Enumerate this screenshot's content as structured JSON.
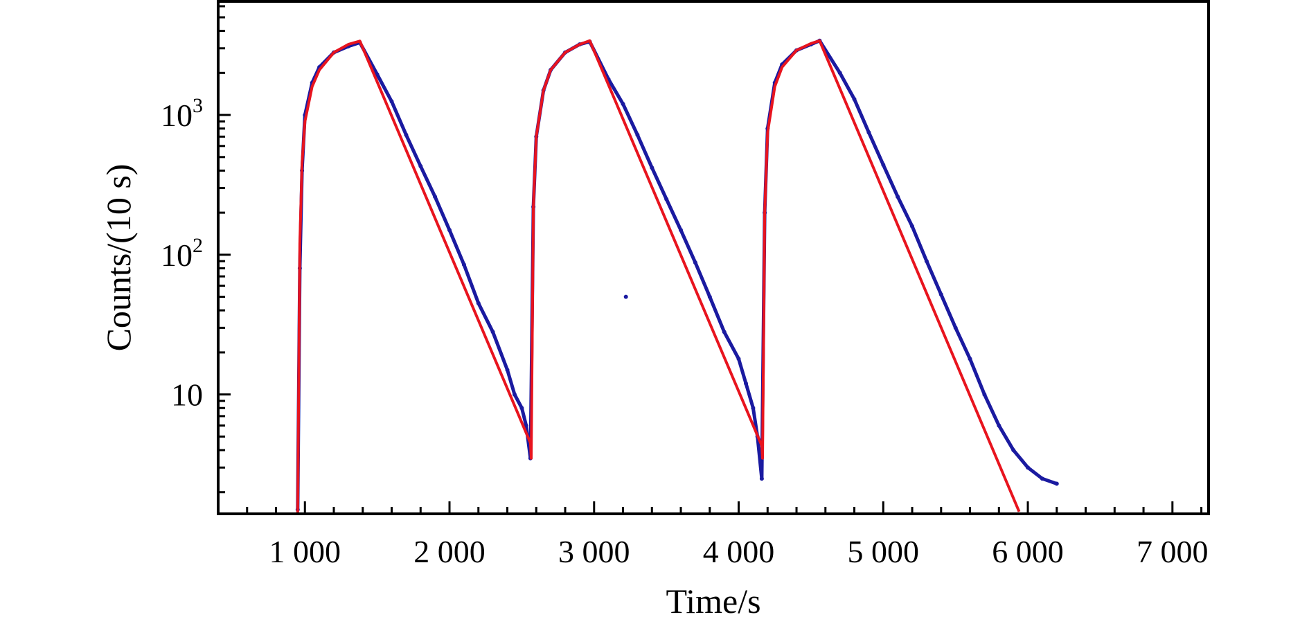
{
  "chart_data": {
    "type": "line",
    "title": "",
    "xlabel": "Time/s",
    "ylabel": "Counts/(10 s)",
    "xlim": [
      400,
      7250
    ],
    "ylim": [
      1.4,
      6500
    ],
    "yscale": "log",
    "grid": false,
    "legend": "none",
    "colors": {
      "measured": "#1a1aa0",
      "fit": "#e8141e",
      "axes": "#000000"
    },
    "x_ticks": [
      {
        "value": 1000,
        "label": "1 000"
      },
      {
        "value": 2000,
        "label": "2 000"
      },
      {
        "value": 3000,
        "label": "3 000"
      },
      {
        "value": 4000,
        "label": "4 000"
      },
      {
        "value": 5000,
        "label": "5 000"
      },
      {
        "value": 6000,
        "label": "6 000"
      },
      {
        "value": 7000,
        "label": "7 000"
      }
    ],
    "y_ticks": [
      {
        "value": 10,
        "base": "10",
        "exp": ""
      },
      {
        "value": 100,
        "base": "10",
        "exp": "2"
      },
      {
        "value": 1000,
        "base": "10",
        "exp": "3"
      }
    ],
    "series": [
      {
        "role": "measured",
        "color": "#1a1aa0",
        "x": [
          950,
          965,
          980,
          1000,
          1050,
          1100,
          1200,
          1300,
          1380,
          1500,
          1600,
          1700,
          1800,
          1900,
          2000,
          2100,
          2200,
          2300,
          2400,
          2450,
          2500,
          2530,
          2560,
          2580,
          2600,
          2650,
          2700,
          2800,
          2900,
          2970,
          3100,
          3200,
          3300,
          3400,
          3500,
          3600,
          3700,
          3800,
          3900,
          4000,
          4050,
          4100,
          4130,
          4160,
          4180,
          4200,
          4250,
          4300,
          4400,
          4500,
          4560,
          4700,
          4800,
          4900,
          5000,
          5100,
          5200,
          5300,
          5400,
          5500,
          5600,
          5700,
          5800,
          5900,
          6000,
          6100,
          6200
        ],
        "y": [
          1.5,
          80,
          400,
          1000,
          1700,
          2200,
          2800,
          3100,
          3300,
          1950,
          1250,
          720,
          430,
          260,
          150,
          85,
          45,
          28,
          15,
          10,
          8,
          6,
          3.5,
          220,
          700,
          1500,
          2100,
          2800,
          3200,
          3350,
          1800,
          1200,
          720,
          420,
          250,
          150,
          88,
          50,
          28,
          18,
          12,
          8,
          5,
          2.5,
          200,
          800,
          1700,
          2300,
          2900,
          3200,
          3400,
          2000,
          1300,
          750,
          440,
          260,
          160,
          90,
          52,
          30,
          18,
          10,
          6,
          4,
          3,
          2.5,
          2.3
        ]
      },
      {
        "role": "fit",
        "color": "#e8141e",
        "x": [
          950,
          965,
          980,
          1000,
          1050,
          1100,
          1200,
          1300,
          1380,
          2560,
          2565,
          2580,
          2600,
          2650,
          2700,
          2800,
          2900,
          2970,
          4160,
          4165,
          4180,
          4200,
          4250,
          4300,
          4400,
          4500,
          4560,
          5940
        ],
        "y": [
          1.4,
          120,
          450,
          900,
          1600,
          2100,
          2800,
          3200,
          3380,
          4.5,
          3.5,
          220,
          700,
          1500,
          2100,
          2800,
          3200,
          3400,
          4.3,
          3.5,
          200,
          750,
          1600,
          2200,
          2900,
          3250,
          3400,
          1.45
        ]
      }
    ],
    "annotations": [
      {
        "x": 3220,
        "y": 50,
        "text": "",
        "kind": "stray-point"
      }
    ]
  }
}
